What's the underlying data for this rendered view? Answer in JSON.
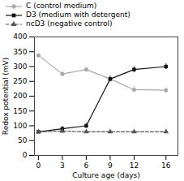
{
  "chart_data": {
    "type": "line",
    "xlabel": "Culture age (days)",
    "ylabel": "Redox potential (mV)",
    "x": [
      0,
      3,
      6,
      9,
      12,
      16
    ],
    "series": [
      {
        "name": "C (control medium)",
        "color": "#aaaaaa",
        "marker": "circle",
        "line_style": "solid",
        "values": [
          338,
          275,
          290,
          258,
          222,
          220
        ],
        "errors": [
          5,
          8,
          8,
          8,
          10,
          8
        ]
      },
      {
        "name": "D3 (medium with detergent)",
        "color": "#111111",
        "marker": "square",
        "line_style": "solid",
        "values": [
          80,
          90,
          100,
          258,
          290,
          300
        ],
        "errors": [
          5,
          8,
          8,
          10,
          10,
          10
        ]
      },
      {
        "name": "ncD3 (negative control)",
        "color": "#555555",
        "marker": "triangle",
        "line_style": "dashed",
        "values": [
          80,
          82,
          80,
          80,
          80,
          80
        ],
        "errors": [
          3,
          3,
          3,
          3,
          3,
          3
        ]
      }
    ],
    "xlim": [
      -0.5,
      17.5
    ],
    "ylim": [
      0,
      400
    ],
    "xticks": [
      0,
      3,
      6,
      9,
      12,
      16
    ],
    "yticks": [
      0,
      50,
      100,
      150,
      200,
      250,
      300,
      350,
      400
    ],
    "grid": false,
    "legend": "upper left"
  }
}
